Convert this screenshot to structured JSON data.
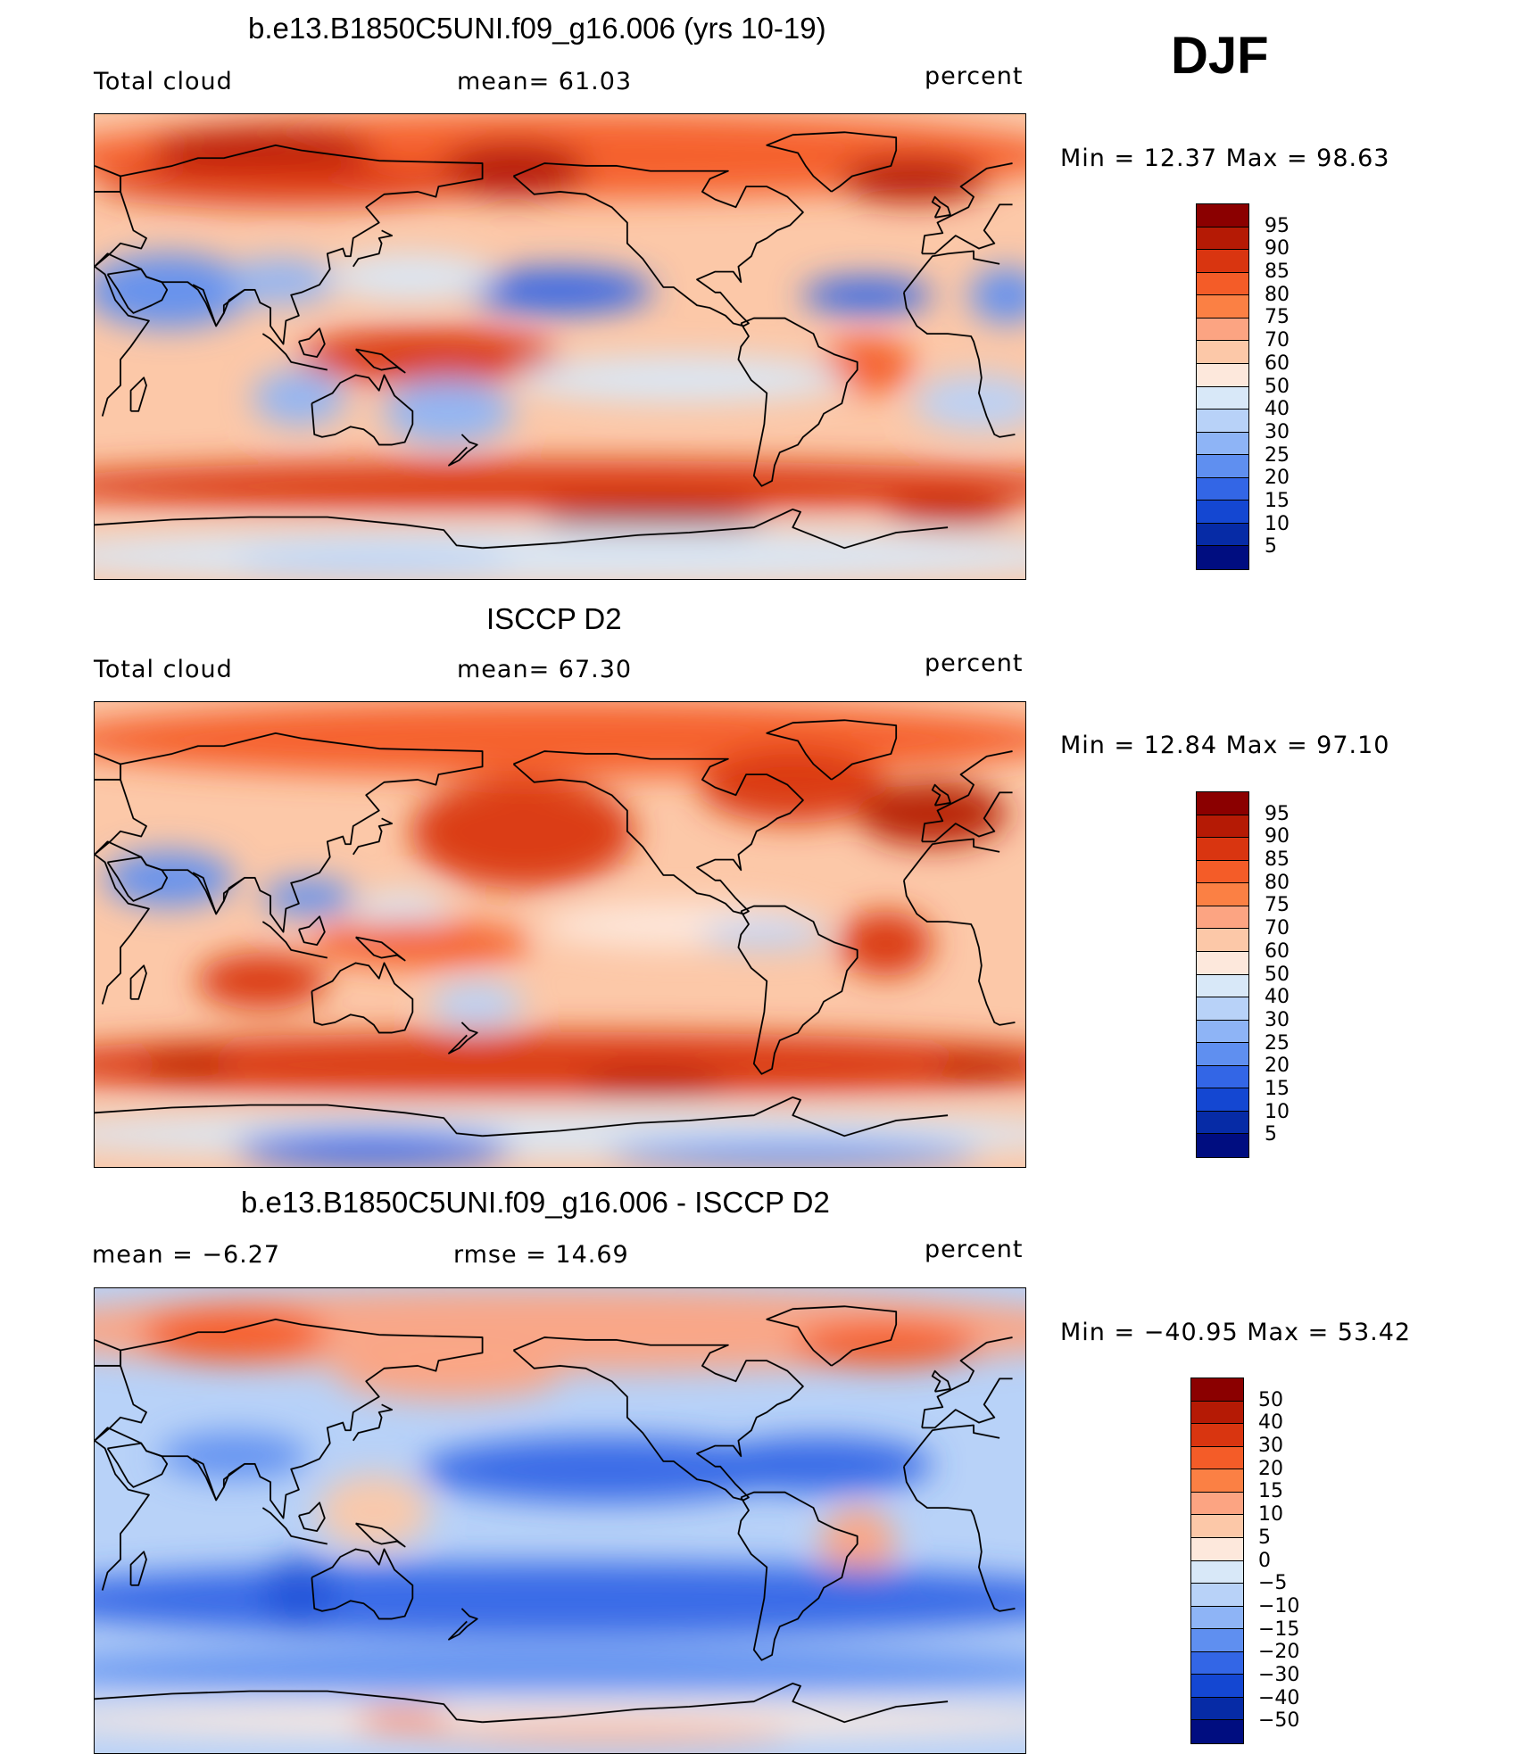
{
  "season": "DJF",
  "panels": [
    {
      "title": "b.e13.B1850C5UNI.f09_g16.006 (yrs 10-19)",
      "left_label": "Total cloud",
      "center_label": "mean=   61.03",
      "units": "percent",
      "minmax": "Min =   12.37  Max =   98.63",
      "levels": [
        "95",
        "90",
        "85",
        "80",
        "75",
        "70",
        "60",
        "50",
        "40",
        "30",
        "25",
        "20",
        "15",
        "10",
        "5"
      ],
      "colors": [
        "#8b0000",
        "#b51a05",
        "#d93510",
        "#f45c28",
        "#fb8044",
        "#fca482",
        "#fcc8a8",
        "#fde8dc",
        "#d8e8f8",
        "#b8d2f8",
        "#8eb4f6",
        "#5f8ff0",
        "#3366e6",
        "#1447d2",
        "#062ba6",
        "#000d80"
      ],
      "map_scheme": "model"
    },
    {
      "title": "ISCCP D2",
      "left_label": "Total cloud",
      "center_label": "mean=   67.30",
      "units": "percent",
      "minmax": "Min =   12.84  Max =   97.10",
      "levels": [
        "95",
        "90",
        "85",
        "80",
        "75",
        "70",
        "60",
        "50",
        "40",
        "30",
        "25",
        "20",
        "15",
        "10",
        "5"
      ],
      "colors": [
        "#8b0000",
        "#b51a05",
        "#d93510",
        "#f45c28",
        "#fb8044",
        "#fca482",
        "#fcc8a8",
        "#fde8dc",
        "#d8e8f8",
        "#b8d2f8",
        "#8eb4f6",
        "#5f8ff0",
        "#3366e6",
        "#1447d2",
        "#062ba6",
        "#000d80"
      ],
      "map_scheme": "obs"
    },
    {
      "title": "b.e13.B1850C5UNI.f09_g16.006 - ISCCP D2",
      "left_label": "mean =   −6.27",
      "center_label": "rmse =   14.69",
      "units": "percent",
      "minmax": "Min = −40.95  Max =   53.42",
      "levels": [
        "50",
        "40",
        "30",
        "20",
        "15",
        "10",
        "5",
        "0",
        "−5",
        "−10",
        "−15",
        "−20",
        "−30",
        "−40",
        "−50"
      ],
      "colors": [
        "#8b0000",
        "#b51a05",
        "#d93510",
        "#f45c28",
        "#fb8044",
        "#fca482",
        "#fcc8a8",
        "#fde8dc",
        "#d8e8f8",
        "#b8d2f8",
        "#8eb4f6",
        "#5f8ff0",
        "#3366e6",
        "#1447d2",
        "#062ba6",
        "#000d80"
      ],
      "map_scheme": "diff"
    }
  ]
}
